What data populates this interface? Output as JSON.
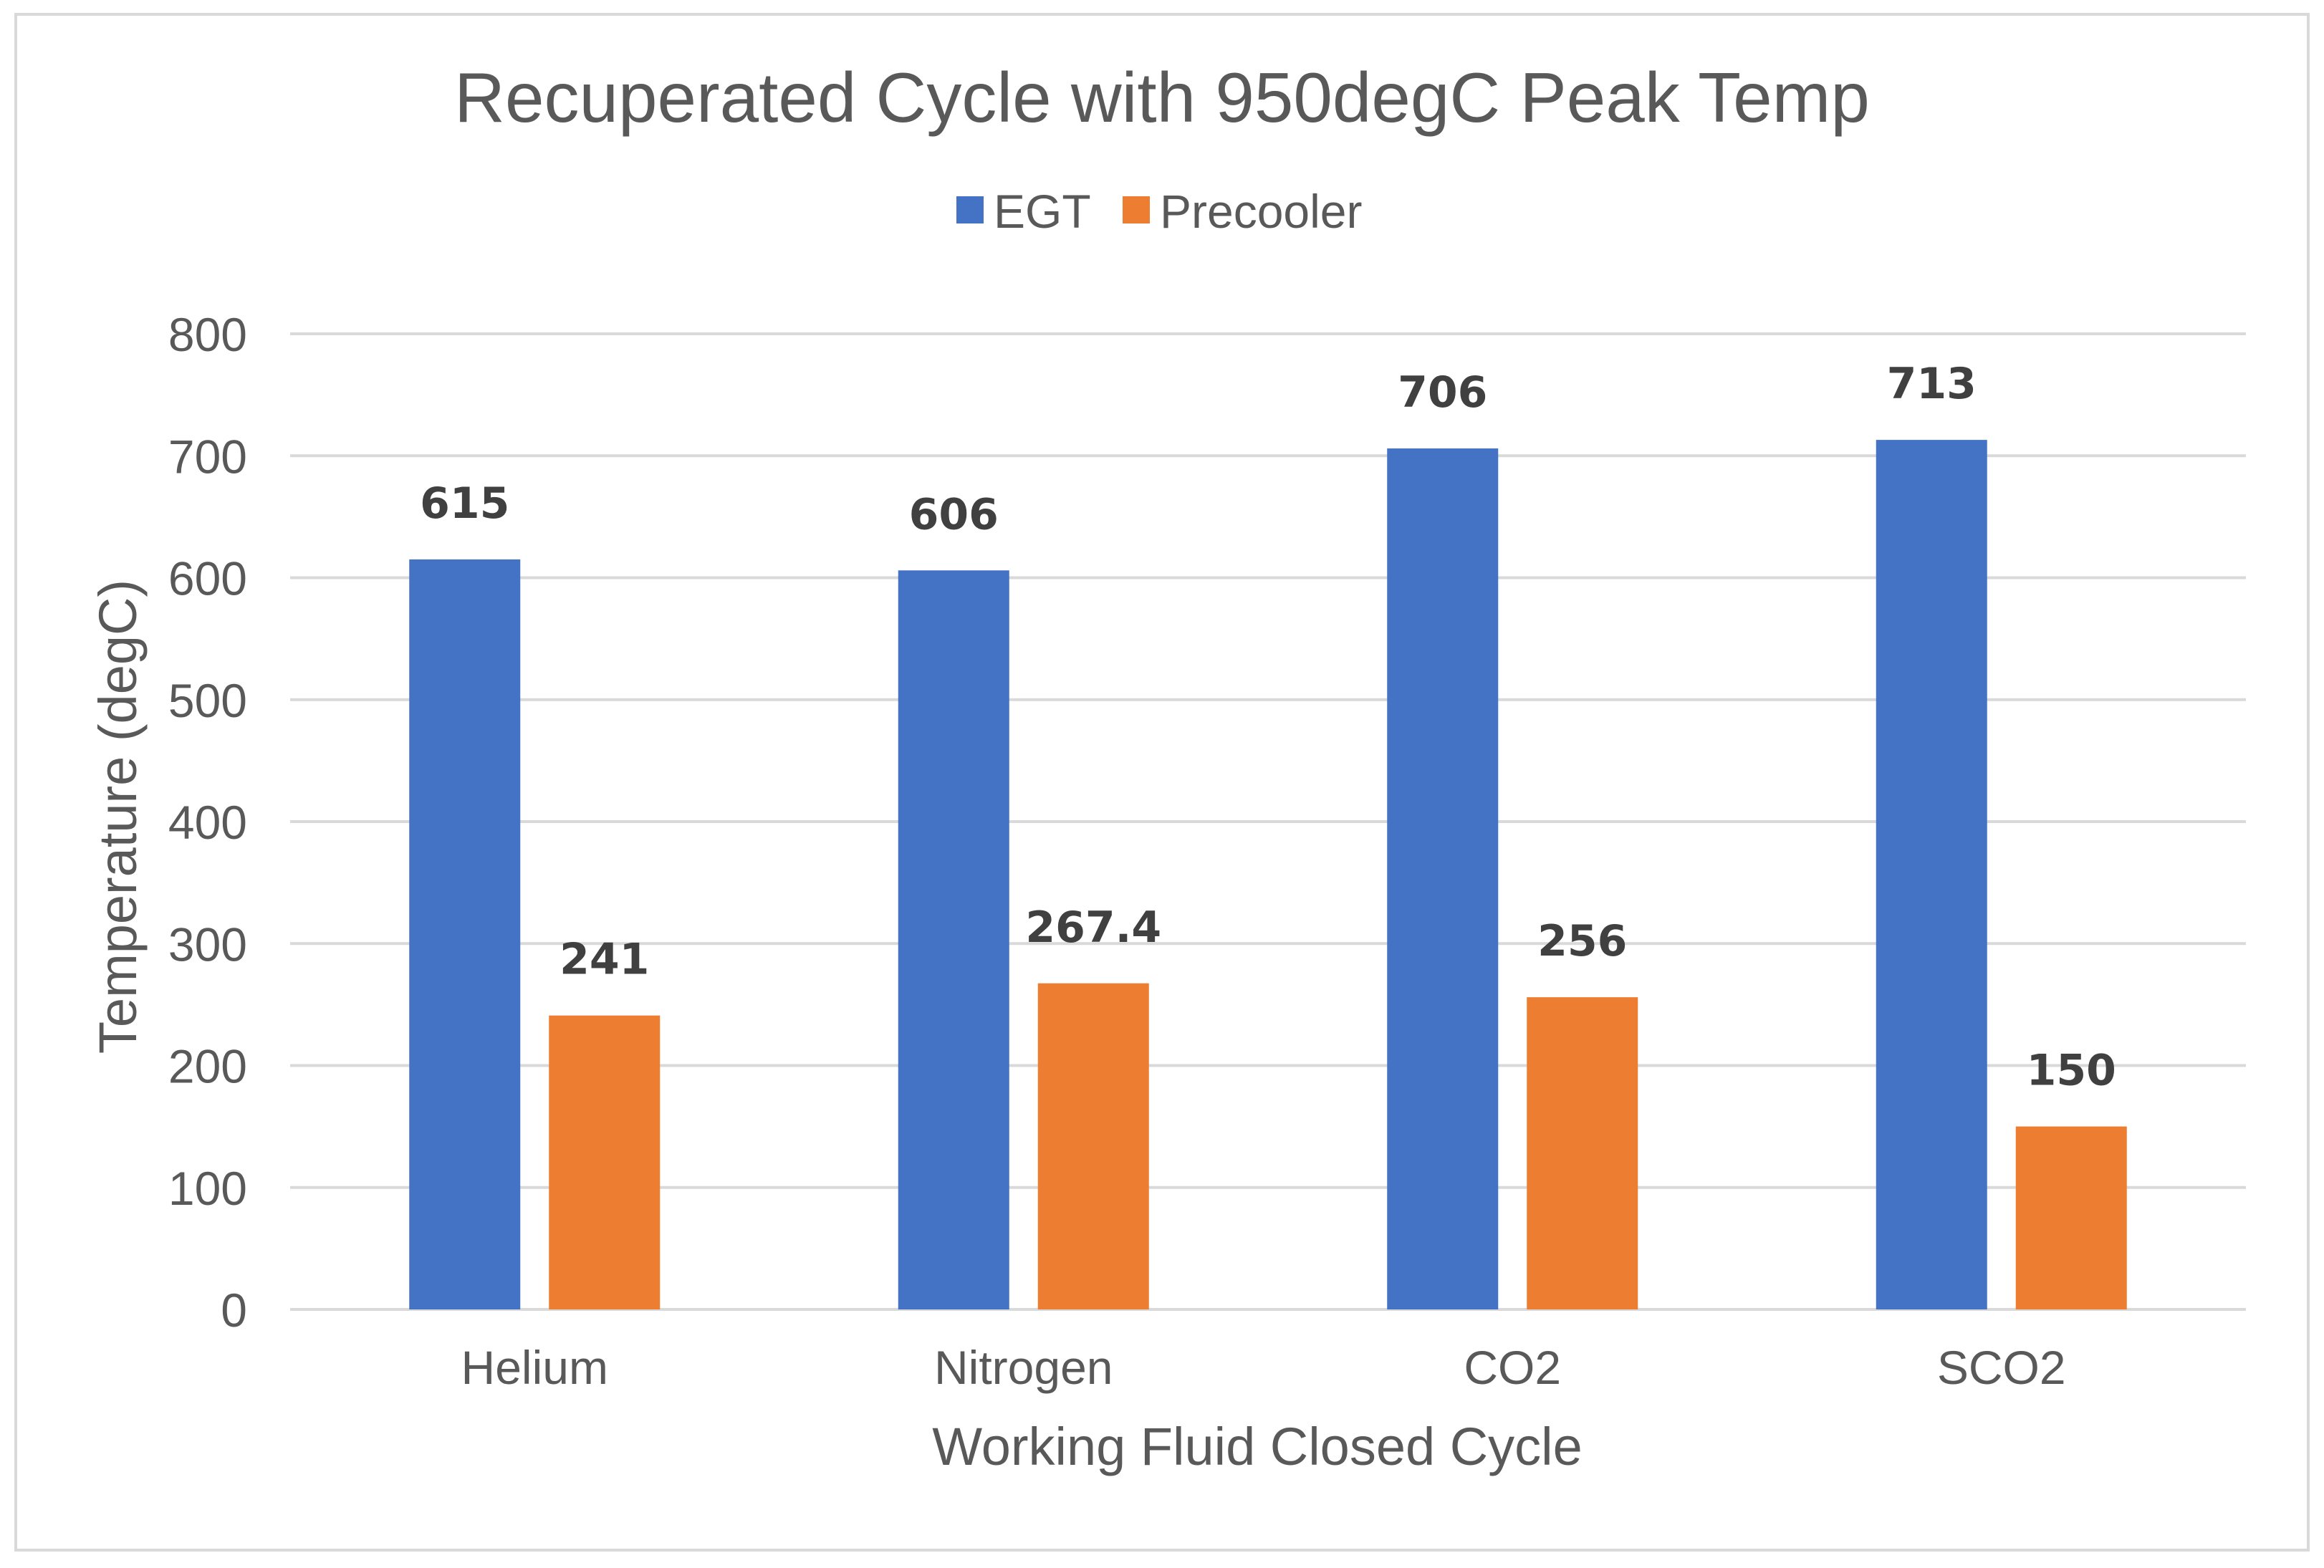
{
  "chart_data": {
    "type": "bar",
    "title": "Recuperated Cycle with 950degC Peak Temp",
    "xlabel": "Working Fluid Closed Cycle",
    "ylabel": "Temperature (degC)",
    "ylim": [
      0,
      800
    ],
    "yticks": [
      0,
      100,
      200,
      300,
      400,
      500,
      600,
      700,
      800
    ],
    "grid": true,
    "legend_position": "top",
    "categories": [
      "Helium",
      "Nitrogen",
      "CO2",
      "SCO2"
    ],
    "series": [
      {
        "name": "EGT",
        "color": "#4472C4",
        "values": [
          615,
          606,
          706,
          713
        ],
        "labels": [
          "615",
          "606",
          "706",
          "713"
        ]
      },
      {
        "name": "Precooler",
        "color": "#ED7D31",
        "values": [
          241,
          267.4,
          256,
          150
        ],
        "labels": [
          "241",
          "267.4",
          "256",
          "150"
        ]
      }
    ]
  }
}
